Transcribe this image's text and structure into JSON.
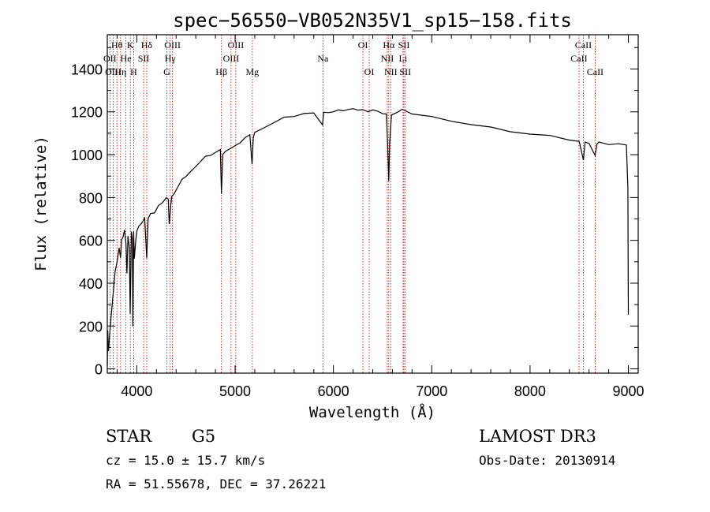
{
  "chart_data": {
    "type": "line",
    "title": "spec−56550−VB052N35V1_sp15−158.fits",
    "xlabel": "Wavelength (Å)",
    "ylabel": "Flux (relative)",
    "xlim": [
      3700,
      9100
    ],
    "ylim": [
      -20,
      1560
    ],
    "x_ticks": [
      4000,
      5000,
      6000,
      7000,
      8000,
      9000
    ],
    "y_ticks": [
      0,
      200,
      400,
      600,
      800,
      1000,
      1200,
      1400
    ],
    "series": [
      {
        "name": "flux",
        "x": [
          3700,
          3705,
          3712,
          3722,
          3740,
          3760,
          3780,
          3800,
          3820,
          3835,
          3845,
          3860,
          3875,
          3890,
          3900,
          3910,
          3925,
          3933,
          3945,
          3955,
          3960,
          3968,
          3975,
          3990,
          4000,
          4020,
          4050,
          4080,
          4101,
          4115,
          4140,
          4180,
          4220,
          4260,
          4300,
          4320,
          4330,
          4345,
          4355,
          4380,
          4420,
          4460,
          4500,
          4550,
          4600,
          4650,
          4700,
          4750,
          4800,
          4850,
          4861,
          4875,
          4900,
          4950,
          5000,
          5050,
          5100,
          5150,
          5172,
          5185,
          5200,
          5300,
          5400,
          5500,
          5600,
          5700,
          5800,
          5890,
          5900,
          5950,
          6000,
          6050,
          6100,
          6150,
          6200,
          6250,
          6300,
          6350,
          6400,
          6450,
          6500,
          6540,
          6555,
          6563,
          6572,
          6590,
          6650,
          6700,
          6800,
          6900,
          7000,
          7200,
          7400,
          7600,
          7800,
          8000,
          8200,
          8400,
          8500,
          8542,
          8560,
          8600,
          8662,
          8680,
          8700,
          8800,
          8900,
          8980,
          8995,
          9000
        ],
        "values": [
          20,
          180,
          80,
          150,
          250,
          350,
          460,
          500,
          560,
          520,
          600,
          620,
          650,
          580,
          450,
          620,
          560,
          260,
          640,
          600,
          200,
          640,
          520,
          600,
          640,
          670,
          680,
          700,
          520,
          700,
          720,
          730,
          760,
          780,
          800,
          790,
          680,
          760,
          800,
          820,
          850,
          880,
          900,
          920,
          950,
          970,
          990,
          1000,
          1010,
          1020,
          820,
          1000,
          1010,
          1030,
          1040,
          1060,
          1080,
          1090,
          960,
          1080,
          1100,
          1130,
          1150,
          1170,
          1180,
          1190,
          1200,
          1140,
          1195,
          1200,
          1200,
          1205,
          1208,
          1210,
          1210,
          1210,
          1208,
          1205,
          1210,
          1200,
          1195,
          1190,
          1000,
          880,
          1050,
          1180,
          1200,
          1210,
          1195,
          1185,
          1175,
          1160,
          1140,
          1125,
          1110,
          1095,
          1085,
          1070,
          1060,
          980,
          1060,
          1050,
          1000,
          1050,
          1055,
          1050,
          1050,
          1040,
          850,
          250
        ]
      }
    ],
    "spectral_lines": [
      {
        "label": "Hθ",
        "wave": 3798,
        "row": 1
      },
      {
        "label": "OII",
        "wave": 3727,
        "row": 2
      },
      {
        "label": "OIII",
        "wave": 3760,
        "row": 3
      },
      {
        "label": "Hη",
        "wave": 3835,
        "row": 3
      },
      {
        "label": "He",
        "wave": 3889,
        "row": 2
      },
      {
        "label": "K",
        "wave": 3934,
        "row": 1
      },
      {
        "label": "H",
        "wave": 3968,
        "row": 3
      },
      {
        "label": "SII",
        "wave": 4070,
        "row": 2
      },
      {
        "label": "Hδ",
        "wave": 4101,
        "row": 1
      },
      {
        "label": "OIII",
        "wave": 4363,
        "row": 1
      },
      {
        "label": "Hγ",
        "wave": 4340,
        "row": 2
      },
      {
        "label": "G",
        "wave": 4305,
        "row": 3
      },
      {
        "label": "Hβ",
        "wave": 4861,
        "row": 3
      },
      {
        "label": "OIII",
        "wave": 5007,
        "row": 1
      },
      {
        "label": "OIII",
        "wave": 4959,
        "row": 2
      },
      {
        "label": "Mg",
        "wave": 5175,
        "row": 3
      },
      {
        "label": "Na",
        "wave": 5893,
        "row": 2
      },
      {
        "label": "OI",
        "wave": 6300,
        "row": 1
      },
      {
        "label": "OI",
        "wave": 6364,
        "row": 3
      },
      {
        "label": "Hα",
        "wave": 6563,
        "row": 1
      },
      {
        "label": "NII",
        "wave": 6548,
        "row": 2
      },
      {
        "label": "NII",
        "wave": 6583,
        "row": 3
      },
      {
        "label": "SII",
        "wave": 6717,
        "row": 1
      },
      {
        "label": "Li",
        "wave": 6708,
        "row": 2
      },
      {
        "label": "SII",
        "wave": 6731,
        "row": 3
      },
      {
        "label": "CaII",
        "wave": 8542,
        "row": 1
      },
      {
        "label": "CaII",
        "wave": 8498,
        "row": 2
      },
      {
        "label": "CaII",
        "wave": 8662,
        "row": 3
      }
    ],
    "colors": {
      "spectrum": "#000000",
      "line_markers": "#c00000"
    }
  },
  "info": {
    "object_class": "STAR",
    "subclass": "G5",
    "survey": "LAMOST DR3",
    "redshift": "cz = 15.0 ± 15.7 km/s",
    "obs_date": "Obs-Date: 20130914",
    "coords": "RA =  51.55678, DEC =  37.26221"
  }
}
